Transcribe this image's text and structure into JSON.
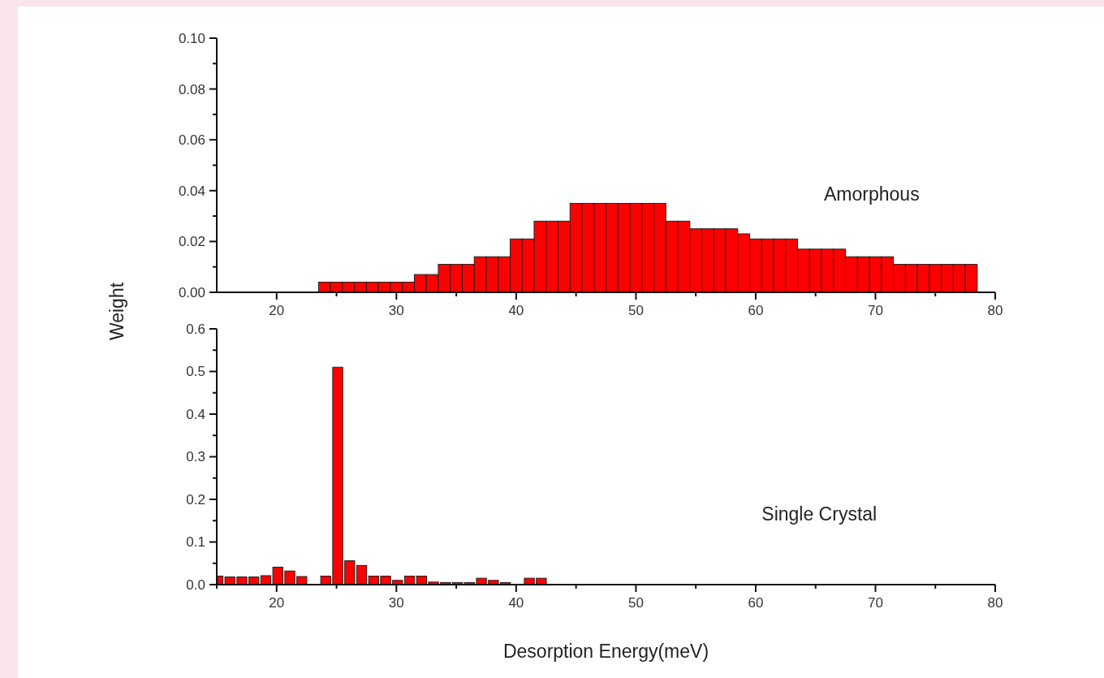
{
  "chart_data": [
    {
      "type": "histogram",
      "ylabel": "Weight",
      "annotations": [
        "Amorphous"
      ],
      "color": "#ff0000",
      "bins": [
        23.5,
        24.5,
        25.5,
        26.5,
        27.5,
        28.5,
        29.5,
        30.5,
        31.5,
        32.5,
        33.5,
        34.5,
        35.5,
        36.5,
        37.5,
        38.5,
        39.5,
        40.5,
        41.5,
        42.5,
        43.5,
        44.5,
        45.5,
        46.5,
        47.5,
        48.5,
        49.5,
        50.5,
        51.5,
        52.5,
        53.5,
        54.5,
        55.5,
        56.5,
        57.5,
        58.5,
        59.5,
        60.5,
        61.5,
        62.5,
        63.5,
        64.5,
        65.5,
        66.5,
        67.5,
        68.5,
        69.5,
        70.5,
        71.5,
        72.5,
        73.5,
        74.5,
        75.5,
        76.5,
        77.5,
        78.5
      ],
      "values": [
        0.004,
        0.004,
        0.004,
        0.004,
        0.004,
        0.004,
        0.004,
        0.004,
        0.007,
        0.007,
        0.011,
        0.011,
        0.011,
        0.014,
        0.014,
        0.014,
        0.021,
        0.021,
        0.028,
        0.028,
        0.028,
        0.035,
        0.035,
        0.035,
        0.035,
        0.035,
        0.035,
        0.035,
        0.035,
        0.028,
        0.028,
        0.025,
        0.025,
        0.025,
        0.025,
        0.023,
        0.021,
        0.021,
        0.021,
        0.021,
        0.017,
        0.017,
        0.017,
        0.017,
        0.014,
        0.014,
        0.014,
        0.014,
        0.011,
        0.011,
        0.011,
        0.011,
        0.011,
        0.011,
        0.011
      ],
      "xlim": [
        15,
        80
      ],
      "xticks": [
        {
          "value": 20,
          "label": "20"
        },
        {
          "value": 25,
          "label": null
        },
        {
          "value": 30,
          "label": "30"
        },
        {
          "value": 35,
          "label": null
        },
        {
          "value": 40,
          "label": "40"
        },
        {
          "value": 45,
          "label": null
        },
        {
          "value": 50,
          "label": "50"
        },
        {
          "value": 55,
          "label": null
        },
        {
          "value": 60,
          "label": "60"
        },
        {
          "value": 65,
          "label": null
        },
        {
          "value": 70,
          "label": "70"
        },
        {
          "value": 75,
          "label": null
        },
        {
          "value": 80,
          "label": "80"
        }
      ],
      "ylim": [
        0,
        0.1
      ],
      "yticks": [
        {
          "value": 0,
          "label": "0.00"
        },
        {
          "value": 0.01,
          "label": null
        },
        {
          "value": 0.02,
          "label": "0.02"
        },
        {
          "value": 0.03,
          "label": null
        },
        {
          "value": 0.04,
          "label": "0.04"
        },
        {
          "value": 0.05,
          "label": null
        },
        {
          "value": 0.06,
          "label": "0.06"
        },
        {
          "value": 0.07,
          "label": null
        },
        {
          "value": 0.08,
          "label": "0.08"
        },
        {
          "value": 0.09,
          "label": null
        },
        {
          "value": 0.1,
          "label": "0.10"
        }
      ]
    },
    {
      "type": "histogram",
      "xlabel": "Desorption Energy(meV)",
      "annotations": [
        "Single Crystal"
      ],
      "color": "#ff0000",
      "bins": [
        15,
        15.6,
        16.6,
        17.6,
        18.6,
        19.6,
        20.6,
        21.6,
        22.6,
        23.6,
        24.6,
        25.6,
        26.6,
        27.6,
        28.6,
        29.6,
        30.6,
        31.6,
        32.6,
        33.6,
        34.6,
        35.6,
        36.6,
        37.6,
        38.6,
        39.6,
        40.6,
        41.6,
        42.6
      ],
      "values": [
        0.02,
        0.018,
        0.018,
        0.018,
        0.021,
        0.041,
        0.032,
        0.019,
        0,
        0.02,
        0.51,
        0.056,
        0.045,
        0.02,
        0.02,
        0.01,
        0.02,
        0.02,
        0.006,
        0.005,
        0.005,
        0.005,
        0.015,
        0.01,
        0.005,
        0,
        0.015,
        0.015
      ],
      "xlim": [
        15,
        80
      ],
      "xticks": [
        {
          "value": 15,
          "label": null
        },
        {
          "value": 20,
          "label": "20"
        },
        {
          "value": 25,
          "label": null
        },
        {
          "value": 30,
          "label": "30"
        },
        {
          "value": 35,
          "label": null
        },
        {
          "value": 40,
          "label": "40"
        },
        {
          "value": 45,
          "label": null
        },
        {
          "value": 50,
          "label": "50"
        },
        {
          "value": 55,
          "label": null
        },
        {
          "value": 60,
          "label": "60"
        },
        {
          "value": 65,
          "label": null
        },
        {
          "value": 70,
          "label": "70"
        },
        {
          "value": 75,
          "label": null
        },
        {
          "value": 80,
          "label": "80"
        }
      ],
      "ylim": [
        0,
        0.6
      ],
      "yticks": [
        {
          "value": 0,
          "label": "0.0"
        },
        {
          "value": 0.05,
          "label": null
        },
        {
          "value": 0.1,
          "label": "0.1"
        },
        {
          "value": 0.15,
          "label": null
        },
        {
          "value": 0.2,
          "label": "0.2"
        },
        {
          "value": 0.25,
          "label": null
        },
        {
          "value": 0.3,
          "label": "0.3"
        },
        {
          "value": 0.35,
          "label": null
        },
        {
          "value": 0.4,
          "label": "0.4"
        },
        {
          "value": 0.45,
          "label": null
        },
        {
          "value": 0.5,
          "label": "0.5"
        },
        {
          "value": 0.55,
          "label": null
        },
        {
          "value": 0.6,
          "label": "0.6"
        }
      ]
    }
  ]
}
